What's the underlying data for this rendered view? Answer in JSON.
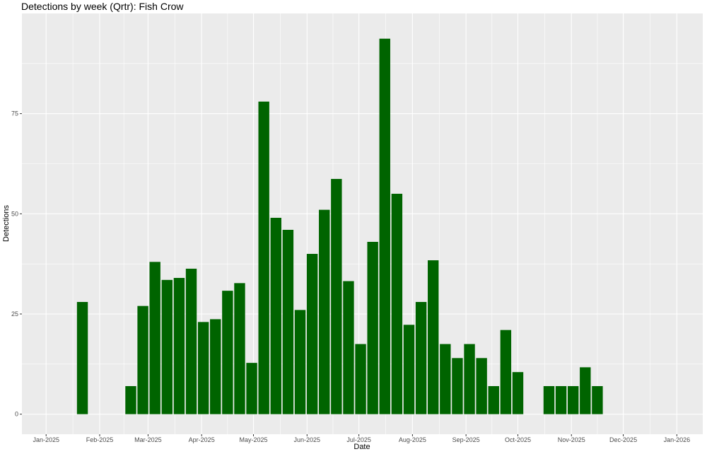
{
  "chart_data": {
    "type": "bar",
    "title": "Detections by week (Qrtr): Fish Crow",
    "xlabel": "Date",
    "ylabel": "Detections",
    "bar_color": "#006400",
    "panel_color": "#ebebeb",
    "grid": true,
    "legend": "none",
    "ylim": [
      -5,
      100
    ],
    "xlim": [
      "2024-12-18",
      "2026-01-16"
    ],
    "y_ticks": [
      0,
      25,
      50,
      75
    ],
    "x_ticks": [
      {
        "date": "2025-01-01",
        "label": "Jan-2025"
      },
      {
        "date": "2025-02-01",
        "label": "Feb-2025"
      },
      {
        "date": "2025-03-01",
        "label": "Mar-2025"
      },
      {
        "date": "2025-04-01",
        "label": "Apr-2025"
      },
      {
        "date": "2025-05-01",
        "label": "May-2025"
      },
      {
        "date": "2025-06-01",
        "label": "Jun-2025"
      },
      {
        "date": "2025-07-01",
        "label": "Jul-2025"
      },
      {
        "date": "2025-08-01",
        "label": "Aug-2025"
      },
      {
        "date": "2025-09-01",
        "label": "Sep-2025"
      },
      {
        "date": "2025-10-01",
        "label": "Oct-2025"
      },
      {
        "date": "2025-11-01",
        "label": "Nov-2025"
      },
      {
        "date": "2025-12-01",
        "label": "Dec-2025"
      },
      {
        "date": "2026-01-01",
        "label": "Jan-2026"
      }
    ],
    "bar_width_days": 6.3,
    "x": [
      "2025-01-22",
      "2025-02-19",
      "2025-02-26",
      "2025-03-05",
      "2025-03-12",
      "2025-03-19",
      "2025-03-26",
      "2025-04-02",
      "2025-04-09",
      "2025-04-16",
      "2025-04-23",
      "2025-04-30",
      "2025-05-07",
      "2025-05-14",
      "2025-05-21",
      "2025-05-28",
      "2025-06-04",
      "2025-06-11",
      "2025-06-18",
      "2025-06-25",
      "2025-07-02",
      "2025-07-09",
      "2025-07-16",
      "2025-07-23",
      "2025-07-30",
      "2025-08-06",
      "2025-08-13",
      "2025-08-20",
      "2025-08-27",
      "2025-09-03",
      "2025-09-10",
      "2025-09-17",
      "2025-09-24",
      "2025-10-01",
      "2025-10-19",
      "2025-10-26",
      "2025-11-02",
      "2025-11-09",
      "2025-11-16"
    ],
    "values": [
      28,
      7,
      27,
      38,
      33.5,
      34,
      36.3,
      23,
      23.7,
      30.8,
      32.7,
      12.8,
      78,
      49,
      46,
      26,
      40,
      51,
      58.7,
      33.2,
      17.5,
      43,
      93.7,
      55,
      22.3,
      28,
      38.4,
      17.5,
      14,
      17.5,
      14,
      7,
      21,
      10.5,
      7,
      7,
      7,
      11.7,
      7
    ]
  }
}
